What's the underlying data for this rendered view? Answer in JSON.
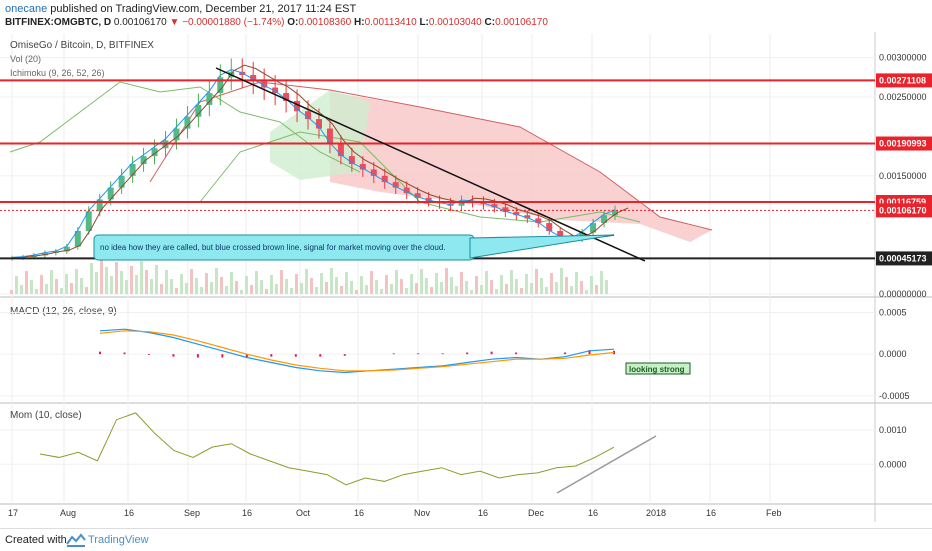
{
  "header": {
    "author": "onecane",
    "published_text": "published on TradingView.com, December 21, 2017 11:24 EST",
    "symbol": "BITFINEX:OMGBTC, D",
    "price": "0.00106170",
    "change": "▼ −0.00001880 (−1.74%)",
    "o_label": "O:",
    "o_value": "0.00108360",
    "h_label": "H:",
    "h_value": "0.00113410",
    "l_label": "L:",
    "l_value": "0.00103040",
    "c_label": "C:",
    "c_value": "0.00106170"
  },
  "footer": {
    "created_with": "Created with",
    "brand": "TradingView"
  },
  "chart_data": [
    {
      "type": "candlestick",
      "title": "OmiseGo / Bitcoin, D, BITFINEX",
      "indicators": [
        "Vol (20)",
        "Ichimoku (9, 26, 52, 26)"
      ],
      "ylim": [
        0.0,
        0.0033
      ],
      "y_ticks": [
        "0.00300000",
        "0.00250000",
        "0.00150000",
        "0.00000000"
      ],
      "x_ticks": [
        "17",
        "Aug",
        "16",
        "Sep",
        "16",
        "Oct",
        "16",
        "Nov",
        "16",
        "Dec",
        "16",
        "2018",
        "16",
        "Feb"
      ],
      "close_series": [
        0.00046,
        0.00047,
        0.00049,
        0.00052,
        0.00054,
        0.0006,
        0.0008,
        0.00105,
        0.0012,
        0.00135,
        0.0015,
        0.00165,
        0.00175,
        0.00185,
        0.00195,
        0.0021,
        0.00225,
        0.0024,
        0.00255,
        0.00275,
        0.00282,
        0.00278,
        0.0027,
        0.00262,
        0.00255,
        0.00245,
        0.00232,
        0.00222,
        0.0021,
        0.0019,
        0.00175,
        0.00165,
        0.00158,
        0.0015,
        0.00142,
        0.00135,
        0.00128,
        0.00122,
        0.00118,
        0.00115,
        0.00112,
        0.00118,
        0.00117,
        0.00114,
        0.0011,
        0.00104,
        0.001,
        0.00096,
        0.0009,
        0.0008,
        0.00072,
        0.0007,
        0.00078,
        0.0009,
        0.001,
        0.00106
      ],
      "horizontal_levels": [
        {
          "value": 0.00271108,
          "label": "0.00271108",
          "color": "#e8232b"
        },
        {
          "value": 0.00190993,
          "label": "0.00190993",
          "color": "#e8232b"
        },
        {
          "value": 0.00116759,
          "label": "0.00116759",
          "color": "#e8232b"
        },
        {
          "value": 0.0010617,
          "label": "0.00106170",
          "color": "#e8232b"
        },
        {
          "value": 0.00045173,
          "label": "0.00045173",
          "color": "#222222"
        }
      ],
      "annotation": "no idea how they are called, but blue crossed brown line, signal for market moving over the cloud."
    },
    {
      "type": "line",
      "title": "MACD (12, 26, close, 9)",
      "ylim": [
        -0.00055,
        0.00065
      ],
      "y_ticks": [
        "0.0005",
        "0.0000",
        "-0.0005"
      ],
      "annotation": "looking strong",
      "macd": [
        0.00028,
        0.0003,
        0.00026,
        0.0002,
        0.00012,
        4e-05,
        -4e-05,
        -0.0001,
        -0.00016,
        -0.0002,
        -0.00022,
        -0.0002,
        -0.00018,
        -0.00016,
        -0.00014,
        -0.0001,
        -6e-05,
        -4e-05,
        -6e-05,
        -3e-05,
        4e-05,
        6e-05
      ],
      "signal": [
        0.00025,
        0.00028,
        0.00027,
        0.00023,
        0.00016,
        8e-05,
        0.0,
        -7e-05,
        -0.00013,
        -0.00017,
        -0.0002,
        -0.0002,
        -0.00019,
        -0.00017,
        -0.00015,
        -0.00012,
        -9e-05,
        -6e-05,
        -6e-05,
        -5e-05,
        -1e-05,
        2e-05
      ],
      "colors": {
        "macd": "#2196f3",
        "signal": "#ff9800",
        "histogram": "#d81b60"
      }
    },
    {
      "type": "line",
      "title": "Mom (10, close)",
      "ylim": [
        -0.0011,
        0.0017
      ],
      "y_ticks": [
        "0.0010",
        "0.0000"
      ],
      "values": [
        0.0003,
        0.0002,
        0.00035,
        0.0001,
        0.0013,
        0.0015,
        0.0009,
        0.0004,
        0.0002,
        0.0005,
        0.0006,
        0.0003,
        0.0001,
        -0.0001,
        -0.0002,
        -0.0003,
        -0.0006,
        -0.0004,
        -0.0005,
        -0.0003,
        -0.0002,
        -0.0001,
        -0.0003,
        -0.0002,
        -0.0004,
        -0.0003,
        -0.00025,
        -0.0001,
        -5e-05,
        0.0002,
        0.0005
      ],
      "color": "#8d9b2c"
    }
  ]
}
